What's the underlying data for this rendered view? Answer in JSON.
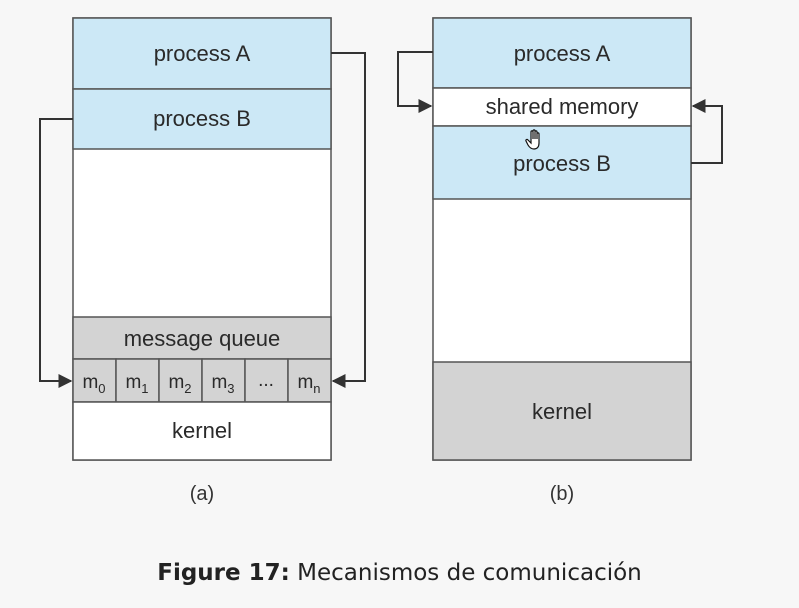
{
  "diagram_a": {
    "process_a": "process A",
    "process_b": "process B",
    "message_queue": "message queue",
    "slots": [
      {
        "base": "m",
        "sub": "0"
      },
      {
        "base": "m",
        "sub": "1"
      },
      {
        "base": "m",
        "sub": "2"
      },
      {
        "base": "m",
        "sub": "3"
      },
      {
        "base": "...",
        "sub": ""
      },
      {
        "base": "m",
        "sub": "n"
      }
    ],
    "kernel": "kernel",
    "label": "(a)"
  },
  "diagram_b": {
    "process_a": "process A",
    "shared_memory": "shared memory",
    "process_b": "process B",
    "kernel": "kernel",
    "label": "(b)"
  },
  "caption": {
    "number": "Figure 17:",
    "text": "Mecanismos de comunicación"
  },
  "colors": {
    "process_fill": "#cce8f6",
    "queue_fill": "#d3d3d3",
    "kernel_b_fill": "#d3d3d3",
    "white_fill": "#ffffff",
    "stroke": "#555555"
  },
  "cursor_icon": "hand-cursor-icon"
}
